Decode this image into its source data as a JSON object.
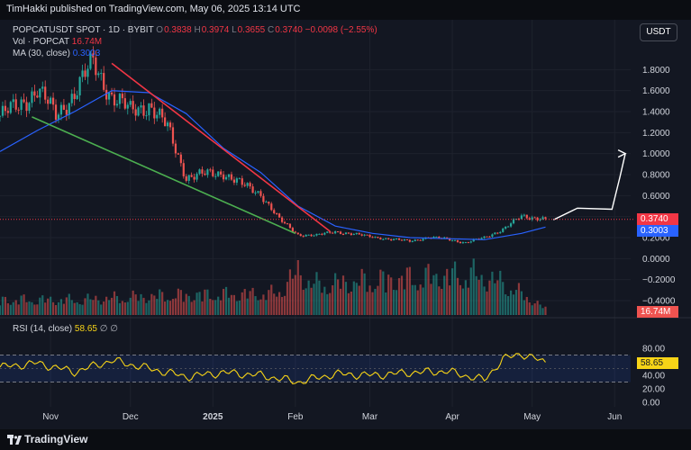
{
  "header": {
    "publisher_line": "TimHakki published on TradingView.com, May 06, 2025 13:14 UTC"
  },
  "currency_button": "USDT",
  "legend": {
    "symbol": "POPCATUSDT SPOT · 1D · BYBIT",
    "o_label": "O",
    "o_value": "0.3838",
    "h_label": "H",
    "h_value": "0.3974",
    "l_label": "L",
    "l_value": "0.3655",
    "c_label": "C",
    "c_value": "0.3740",
    "change": "−0.0098 (−2.55%)",
    "vol_label": "Vol · POPCAT",
    "vol_value": "16.74M",
    "ma_label": "MA (30, close)",
    "ma_value": "0.3003",
    "rsi_label": "RSI (14, close)",
    "rsi_value": "58.65",
    "rsi_extra": "∅ ∅"
  },
  "price_tags": {
    "last_price": "0.3740",
    "ma": "0.3003",
    "volume": "16.74M",
    "rsi": "58.65"
  },
  "footer": {
    "brand": "TradingView"
  },
  "colors": {
    "up": "#26a69a",
    "down": "#ef5350",
    "ma": "#2962ff",
    "rsi": "#f7d417",
    "resistance": "#f23645",
    "support": "#4caf50",
    "projection": "#ffffff",
    "background": "#131722"
  },
  "chart_data": {
    "type": "candlestick",
    "x_axis": {
      "tick_labels": [
        "Nov",
        "Dec",
        "2025",
        "Feb",
        "Mar",
        "Apr",
        "May",
        "Jun"
      ],
      "tick_dates": [
        "2024-11-01",
        "2024-12-01",
        "2025-01-01",
        "2025-02-01",
        "2025-03-01",
        "2025-04-01",
        "2025-05-01",
        "2025-06-01"
      ],
      "range": [
        "2024-10-13",
        "2025-06-07"
      ]
    },
    "price_axis": {
      "tick_labels": [
        "1.8000",
        "1.6000",
        "1.4000",
        "1.2000",
        "1.0000",
        "0.8000",
        "0.6000",
        "0.4000",
        "0.2000",
        "0.0000",
        "−0.2000",
        "−0.4000"
      ],
      "range": [
        -0.52,
        2.0
      ]
    },
    "rsi_axis": {
      "tick_labels": [
        "80.00",
        "60.00",
        "40.00",
        "20.00",
        "0.00"
      ],
      "range": [
        0,
        100
      ],
      "band": [
        30,
        70
      ]
    },
    "price_series": [
      {
        "date": "2024-10-13",
        "close": 1.36
      },
      {
        "date": "2024-10-20",
        "close": 1.45
      },
      {
        "date": "2024-10-27",
        "close": 1.62
      },
      {
        "date": "2024-11-03",
        "close": 1.36
      },
      {
        "date": "2024-11-10",
        "close": 1.58
      },
      {
        "date": "2024-11-17",
        "close": 1.86
      },
      {
        "date": "2024-11-24",
        "close": 1.55
      },
      {
        "date": "2024-12-01",
        "close": 1.4
      },
      {
        "date": "2024-12-08",
        "close": 1.47
      },
      {
        "date": "2024-12-15",
        "close": 1.24
      },
      {
        "date": "2024-12-22",
        "close": 0.78
      },
      {
        "date": "2024-12-29",
        "close": 0.8
      },
      {
        "date": "2025-01-05",
        "close": 0.82
      },
      {
        "date": "2025-01-12",
        "close": 0.7
      },
      {
        "date": "2025-01-19",
        "close": 0.62
      },
      {
        "date": "2025-01-26",
        "close": 0.37
      },
      {
        "date": "2025-02-02",
        "close": 0.23
      },
      {
        "date": "2025-02-09",
        "close": 0.22
      },
      {
        "date": "2025-02-16",
        "close": 0.26
      },
      {
        "date": "2025-02-23",
        "close": 0.23
      },
      {
        "date": "2025-03-02",
        "close": 0.21
      },
      {
        "date": "2025-03-09",
        "close": 0.18
      },
      {
        "date": "2025-03-16",
        "close": 0.17
      },
      {
        "date": "2025-03-23",
        "close": 0.2
      },
      {
        "date": "2025-03-30",
        "close": 0.19
      },
      {
        "date": "2025-04-06",
        "close": 0.15
      },
      {
        "date": "2025-04-13",
        "close": 0.2
      },
      {
        "date": "2025-04-20",
        "close": 0.28
      },
      {
        "date": "2025-04-27",
        "close": 0.4
      },
      {
        "date": "2025-05-04",
        "close": 0.39
      },
      {
        "date": "2025-05-06",
        "close": 0.374
      }
    ],
    "ma_series": [
      {
        "date": "2024-10-13",
        "value": 1.02
      },
      {
        "date": "2024-10-27",
        "value": 1.22
      },
      {
        "date": "2024-11-10",
        "value": 1.4
      },
      {
        "date": "2024-11-24",
        "value": 1.6
      },
      {
        "date": "2024-12-08",
        "value": 1.58
      },
      {
        "date": "2024-12-22",
        "value": 1.38
      },
      {
        "date": "2025-01-05",
        "value": 1.05
      },
      {
        "date": "2025-01-19",
        "value": 0.82
      },
      {
        "date": "2025-02-02",
        "value": 0.5
      },
      {
        "date": "2025-02-16",
        "value": 0.31
      },
      {
        "date": "2025-03-02",
        "value": 0.24
      },
      {
        "date": "2025-03-16",
        "value": 0.2
      },
      {
        "date": "2025-03-30",
        "value": 0.19
      },
      {
        "date": "2025-04-13",
        "value": 0.18
      },
      {
        "date": "2025-04-27",
        "value": 0.24
      },
      {
        "date": "2025-05-06",
        "value": 0.3003
      }
    ],
    "rsi_series": [
      {
        "date": "2024-10-13",
        "value": 52
      },
      {
        "date": "2024-10-27",
        "value": 58
      },
      {
        "date": "2024-11-10",
        "value": 45
      },
      {
        "date": "2024-11-24",
        "value": 62
      },
      {
        "date": "2024-12-08",
        "value": 50
      },
      {
        "date": "2024-12-22",
        "value": 38
      },
      {
        "date": "2025-01-05",
        "value": 44
      },
      {
        "date": "2025-01-19",
        "value": 40
      },
      {
        "date": "2025-02-02",
        "value": 30
      },
      {
        "date": "2025-02-16",
        "value": 42
      },
      {
        "date": "2025-03-02",
        "value": 40
      },
      {
        "date": "2025-03-16",
        "value": 44
      },
      {
        "date": "2025-03-30",
        "value": 46
      },
      {
        "date": "2025-04-13",
        "value": 33
      },
      {
        "date": "2025-04-20",
        "value": 64
      },
      {
        "date": "2025-04-27",
        "value": 72
      },
      {
        "date": "2025-05-06",
        "value": 58.65
      }
    ],
    "volume_series": [
      {
        "date": "2024-11-10",
        "value": 0.35
      },
      {
        "date": "2024-12-15",
        "value": 0.45
      },
      {
        "date": "2025-01-25",
        "value": 0.5
      },
      {
        "date": "2025-02-02",
        "value": 1.0
      },
      {
        "date": "2025-02-08",
        "value": 0.7
      },
      {
        "date": "2025-04-08",
        "value": 0.95
      },
      {
        "date": "2025-04-20",
        "value": 0.75
      },
      {
        "date": "2025-05-06",
        "value": 0.15
      }
    ],
    "trendlines": [
      {
        "name": "resistance",
        "from": {
          "date": "2024-11-24",
          "price": 1.86
        },
        "to": {
          "date": "2025-02-14",
          "price": 0.26
        }
      },
      {
        "name": "support",
        "from": {
          "date": "2024-10-25",
          "price": 1.35
        },
        "to": {
          "date": "2025-02-01",
          "price": 0.24
        }
      }
    ],
    "projection": [
      {
        "date": "2025-05-09",
        "price": 0.37
      },
      {
        "date": "2025-05-18",
        "price": 0.48
      },
      {
        "date": "2025-05-31",
        "price": 0.47
      },
      {
        "date": "2025-06-03",
        "price": 0.78
      },
      {
        "date": "2025-06-05",
        "price": 1.0
      }
    ]
  }
}
